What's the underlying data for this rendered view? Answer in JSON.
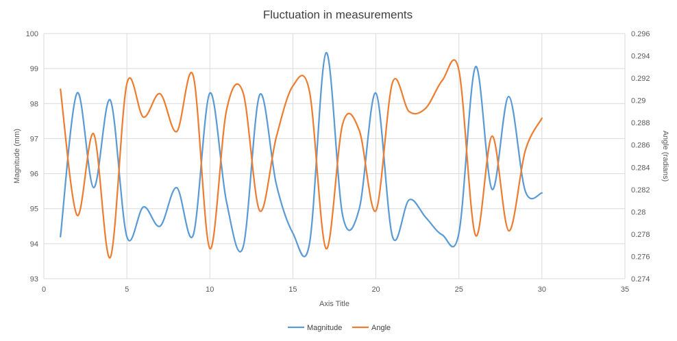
{
  "chart_data": {
    "type": "line",
    "title": "Fluctuation in measurements",
    "xlabel": "Axis Title",
    "ylabel_left": "Magnitude (mm)",
    "ylabel_right": "Angle (radians)",
    "xlim": [
      0,
      35
    ],
    "x_ticks": [
      "0",
      "5",
      "10",
      "15",
      "20",
      "25",
      "30",
      "35"
    ],
    "ylim_left": [
      93,
      100
    ],
    "y_ticks_left": [
      "93",
      "94",
      "95",
      "96",
      "97",
      "98",
      "99",
      "100"
    ],
    "ylim_right": [
      0.274,
      0.296
    ],
    "y_ticks_right": [
      "0.274",
      "0.276",
      "0.278",
      "0.28",
      "0.282",
      "0.284",
      "0.286",
      "0.288",
      "0.29",
      "0.292",
      "0.294",
      "0.296"
    ],
    "grid": true,
    "legend_position": "bottom",
    "x": [
      1,
      2,
      3,
      4,
      5,
      6,
      7,
      8,
      9,
      10,
      11,
      12,
      13,
      14,
      15,
      16,
      17,
      18,
      19,
      20,
      21,
      22,
      23,
      24,
      25,
      26,
      27,
      28,
      29,
      30
    ],
    "series": [
      {
        "name": "Magnitude",
        "axis": "left",
        "color": "#5B9BD5",
        "values": [
          94.2,
          98.3,
          95.6,
          98.1,
          94.2,
          95.05,
          94.5,
          95.6,
          94.25,
          98.3,
          95.2,
          93.9,
          98.25,
          95.7,
          94.3,
          94.0,
          99.45,
          94.8,
          95.0,
          98.3,
          94.2,
          95.25,
          94.75,
          94.25,
          94.3,
          99.05,
          95.55,
          98.2,
          95.5,
          95.45
        ]
      },
      {
        "name": "Angle",
        "axis": "right",
        "color": "#ED7D31",
        "values": [
          0.291,
          0.2797,
          0.287,
          0.2759,
          0.2915,
          0.2885,
          0.2906,
          0.2872,
          0.2922,
          0.2767,
          0.2891,
          0.2907,
          0.2801,
          0.2867,
          0.2913,
          0.2908,
          0.2767,
          0.2879,
          0.2873,
          0.2801,
          0.2916,
          0.289,
          0.2893,
          0.2918,
          0.2927,
          0.2779,
          0.2868,
          0.2783,
          0.2855,
          0.2884
        ]
      }
    ]
  }
}
